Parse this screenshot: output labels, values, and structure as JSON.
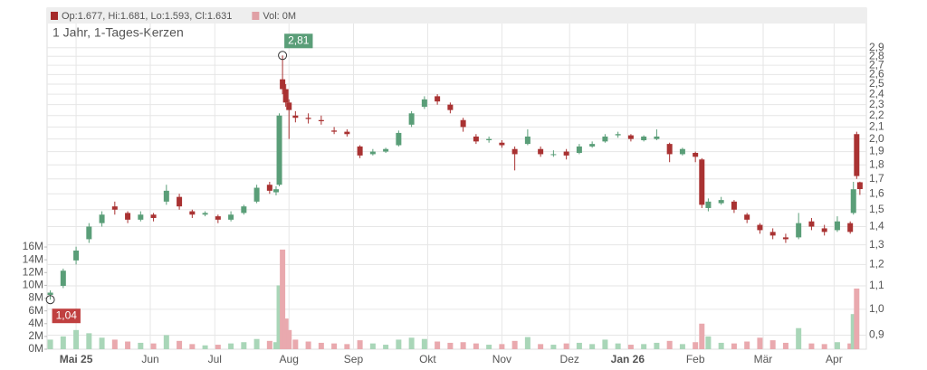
{
  "chart_data": {
    "type": "candlestick",
    "title": "1 Jahr, 1-Tages-Kerzen",
    "legend": [
      {
        "label": "Op:1.677, Hi:1.681, Lo:1.593, Cl:1.631",
        "color": "#a52a2a"
      },
      {
        "label": "Vol: 0M",
        "color": "#e0a0a5"
      }
    ],
    "up_color": "#5a9e78",
    "down_color": "#a93232",
    "volume_up_color": "#a9d6b8",
    "volume_down_color": "#e9a9ae",
    "x": [
      0,
      4,
      8,
      12,
      16,
      20,
      24,
      28,
      32,
      36,
      40,
      44,
      48,
      52,
      56,
      60,
      64,
      68,
      70,
      71,
      72,
      73,
      74,
      76,
      80,
      84,
      88,
      92,
      96,
      100,
      104,
      108,
      112,
      116,
      120,
      124,
      128,
      132,
      136,
      140,
      144,
      148,
      152,
      156,
      160,
      164,
      168,
      172,
      176,
      180,
      184,
      188,
      192,
      196,
      200,
      202,
      204,
      208,
      212,
      216,
      220,
      224,
      228,
      232,
      236,
      240,
      244,
      248,
      249,
      250,
      251
    ],
    "open": [
      1.06,
      1.1,
      1.22,
      1.33,
      1.42,
      1.52,
      1.48,
      1.44,
      1.47,
      1.55,
      1.58,
      1.49,
      1.47,
      1.46,
      1.44,
      1.48,
      1.55,
      1.66,
      1.61,
      1.66,
      2.55,
      2.45,
      2.32,
      2.2,
      2.18,
      2.16,
      2.07,
      2.06,
      1.94,
      1.88,
      1.9,
      1.95,
      2.12,
      2.28,
      2.38,
      2.3,
      2.16,
      2.02,
      1.99,
      1.97,
      1.92,
      1.96,
      1.92,
      1.88,
      1.9,
      1.89,
      1.94,
      1.98,
      2.03,
      2.03,
      1.99,
      2.0,
      1.96,
      1.88,
      1.89,
      1.84,
      1.51,
      1.54,
      1.55,
      1.47,
      1.41,
      1.37,
      1.34,
      1.34,
      1.43,
      1.39,
      1.38,
      1.42,
      1.48,
      2.04,
      1.677
    ],
    "high": [
      1.08,
      1.18,
      1.29,
      1.42,
      1.49,
      1.55,
      1.49,
      1.49,
      1.48,
      1.66,
      1.6,
      1.5,
      1.49,
      1.47,
      1.49,
      1.53,
      1.66,
      1.68,
      1.65,
      2.22,
      2.81,
      2.5,
      2.35,
      2.24,
      2.22,
      2.2,
      2.1,
      2.08,
      1.95,
      1.92,
      1.93,
      2.07,
      2.24,
      2.38,
      2.4,
      2.32,
      2.18,
      2.04,
      2.02,
      1.99,
      1.94,
      2.08,
      1.94,
      1.91,
      1.92,
      1.96,
      1.98,
      2.04,
      2.06,
      2.04,
      2.03,
      2.08,
      1.97,
      1.93,
      1.9,
      1.85,
      1.57,
      1.58,
      1.56,
      1.48,
      1.42,
      1.39,
      1.36,
      1.48,
      1.45,
      1.41,
      1.46,
      1.43,
      1.68,
      2.06,
      1.681
    ],
    "low": [
      1.04,
      1.09,
      1.2,
      1.31,
      1.4,
      1.47,
      1.42,
      1.43,
      1.43,
      1.53,
      1.5,
      1.45,
      1.46,
      1.42,
      1.43,
      1.47,
      1.54,
      1.6,
      1.59,
      1.65,
      2.4,
      2.28,
      2.0,
      2.14,
      2.13,
      2.12,
      2.04,
      2.02,
      1.85,
      1.87,
      1.89,
      1.94,
      2.1,
      2.26,
      2.3,
      2.22,
      2.06,
      1.96,
      1.97,
      1.93,
      1.76,
      1.95,
      1.86,
      1.86,
      1.84,
      1.88,
      1.93,
      1.97,
      2.01,
      1.98,
      1.98,
      1.99,
      1.82,
      1.87,
      1.82,
      1.51,
      1.49,
      1.53,
      1.48,
      1.42,
      1.36,
      1.33,
      1.31,
      1.33,
      1.38,
      1.35,
      1.37,
      1.36,
      1.47,
      1.7,
      1.593
    ],
    "close": [
      1.07,
      1.17,
      1.27,
      1.4,
      1.47,
      1.5,
      1.44,
      1.47,
      1.45,
      1.62,
      1.52,
      1.47,
      1.48,
      1.44,
      1.47,
      1.52,
      1.64,
      1.62,
      1.63,
      2.2,
      2.45,
      2.32,
      2.25,
      2.18,
      2.17,
      2.15,
      2.06,
      2.04,
      1.87,
      1.9,
      1.92,
      2.05,
      2.22,
      2.35,
      2.33,
      2.25,
      2.1,
      1.98,
      2.0,
      1.95,
      1.88,
      2.02,
      1.88,
      1.88,
      1.87,
      1.94,
      1.96,
      2.02,
      2.04,
      2.0,
      2.02,
      2.02,
      1.88,
      1.92,
      1.86,
      1.53,
      1.55,
      1.56,
      1.5,
      1.44,
      1.38,
      1.35,
      1.33,
      1.42,
      1.4,
      1.37,
      1.43,
      1.37,
      1.63,
      1.72,
      1.631
    ],
    "volume": [
      1500000,
      2000000,
      3000000,
      2500000,
      1800000,
      1500000,
      1200000,
      1000000,
      900000,
      2200000,
      1300000,
      800000,
      600000,
      700000,
      900000,
      1100000,
      1600000,
      1300000,
      1100000,
      10000000,
      15600000,
      4800000,
      3000000,
      1500000,
      1200000,
      1000000,
      900000,
      800000,
      1400000,
      900000,
      700000,
      1500000,
      1800000,
      1600000,
      1200000,
      1000000,
      1100000,
      900000,
      700000,
      800000,
      1300000,
      1900000,
      800000,
      700000,
      900000,
      1000000,
      800000,
      1500000,
      900000,
      700000,
      800000,
      1000000,
      1300000,
      800000,
      1100000,
      4000000,
      2000000,
      1000000,
      900000,
      1200000,
      1800000,
      1400000,
      1000000,
      3300000,
      900000,
      800000,
      1100000,
      900000,
      5500000,
      9500000,
      0
    ],
    "xlim": [
      -1,
      253
    ],
    "xticks": [
      {
        "value": 8,
        "label": "Mai 25"
      },
      {
        "value": 31,
        "label": "Jun"
      },
      {
        "value": 51,
        "label": "Jul"
      },
      {
        "value": 74,
        "label": "Aug"
      },
      {
        "value": 94,
        "label": "Sep"
      },
      {
        "value": 117,
        "label": "Okt"
      },
      {
        "value": 140,
        "label": "Nov"
      },
      {
        "value": 161,
        "label": "Dez"
      },
      {
        "value": 179,
        "label": "Jan 26"
      },
      {
        "value": 200,
        "label": "Feb"
      },
      {
        "value": 221,
        "label": "Mär"
      },
      {
        "value": 243,
        "label": "Apr"
      }
    ],
    "log_y": true,
    "ylim": [
      0.85,
      3.2
    ],
    "yticks": [
      {
        "value": 0.9,
        "label": "0,9"
      },
      {
        "value": 1.0,
        "label": "1,0"
      },
      {
        "value": 1.1,
        "label": "1,1"
      },
      {
        "value": 1.2,
        "label": "1,2"
      },
      {
        "value": 1.3,
        "label": "1,3"
      },
      {
        "value": 1.4,
        "label": "1,4"
      },
      {
        "value": 1.5,
        "label": "1,5"
      },
      {
        "value": 1.6,
        "label": "1,6"
      },
      {
        "value": 1.7,
        "label": "1,7"
      },
      {
        "value": 1.8,
        "label": "1,8"
      },
      {
        "value": 1.9,
        "label": "1,9"
      },
      {
        "value": 2.0,
        "label": "2,0"
      },
      {
        "value": 2.1,
        "label": "2,1"
      },
      {
        "value": 2.2,
        "label": "2,2"
      },
      {
        "value": 2.3,
        "label": "2,3"
      },
      {
        "value": 2.4,
        "label": "2,4"
      },
      {
        "value": 2.5,
        "label": "2,5"
      },
      {
        "value": 2.6,
        "label": "2,6"
      },
      {
        "value": 2.7,
        "label": "2,7"
      },
      {
        "value": 2.8,
        "label": "2,8"
      },
      {
        "value": 2.9,
        "label": "2,9"
      }
    ],
    "y2lim": [
      0,
      51000000
    ],
    "y2ticks": [
      {
        "value": 0,
        "label": "0M"
      },
      {
        "value": 2000000,
        "label": "2M"
      },
      {
        "value": 4000000,
        "label": "4M"
      },
      {
        "value": 6000000,
        "label": "6M"
      },
      {
        "value": 8000000,
        "label": "8M"
      },
      {
        "value": 10000000,
        "label": "10M"
      },
      {
        "value": 12000000,
        "label": "12M"
      },
      {
        "value": 14000000,
        "label": "14M"
      },
      {
        "value": 16000000,
        "label": "16M"
      }
    ],
    "grid": true,
    "annotations": [
      {
        "label": "2,81",
        "value": 2.81,
        "x": 72,
        "color": "#5a9e78"
      },
      {
        "label": "1,04",
        "value": 1.04,
        "x": 0,
        "color": "#c04040"
      }
    ]
  }
}
